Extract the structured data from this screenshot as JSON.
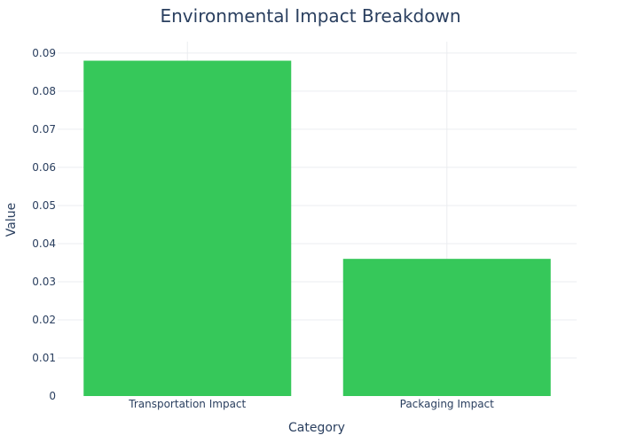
{
  "chart_data": {
    "type": "bar",
    "title": "Environmental Impact Breakdown",
    "xlabel": "Category",
    "ylabel": "Value",
    "categories": [
      "Transportation Impact",
      "Packaging Impact"
    ],
    "values": [
      0.088,
      0.036
    ],
    "ylim": [
      0,
      0.093
    ],
    "yticks": [
      0,
      0.01,
      0.02,
      0.03,
      0.04,
      0.05,
      0.06,
      0.07,
      0.08,
      0.09
    ],
    "ytick_labels": [
      "0",
      "0.01",
      "0.02",
      "0.03",
      "0.04",
      "0.05",
      "0.06",
      "0.07",
      "0.08",
      "0.09"
    ],
    "bar_color": "#36c85a",
    "grid": true,
    "legend": false
  }
}
